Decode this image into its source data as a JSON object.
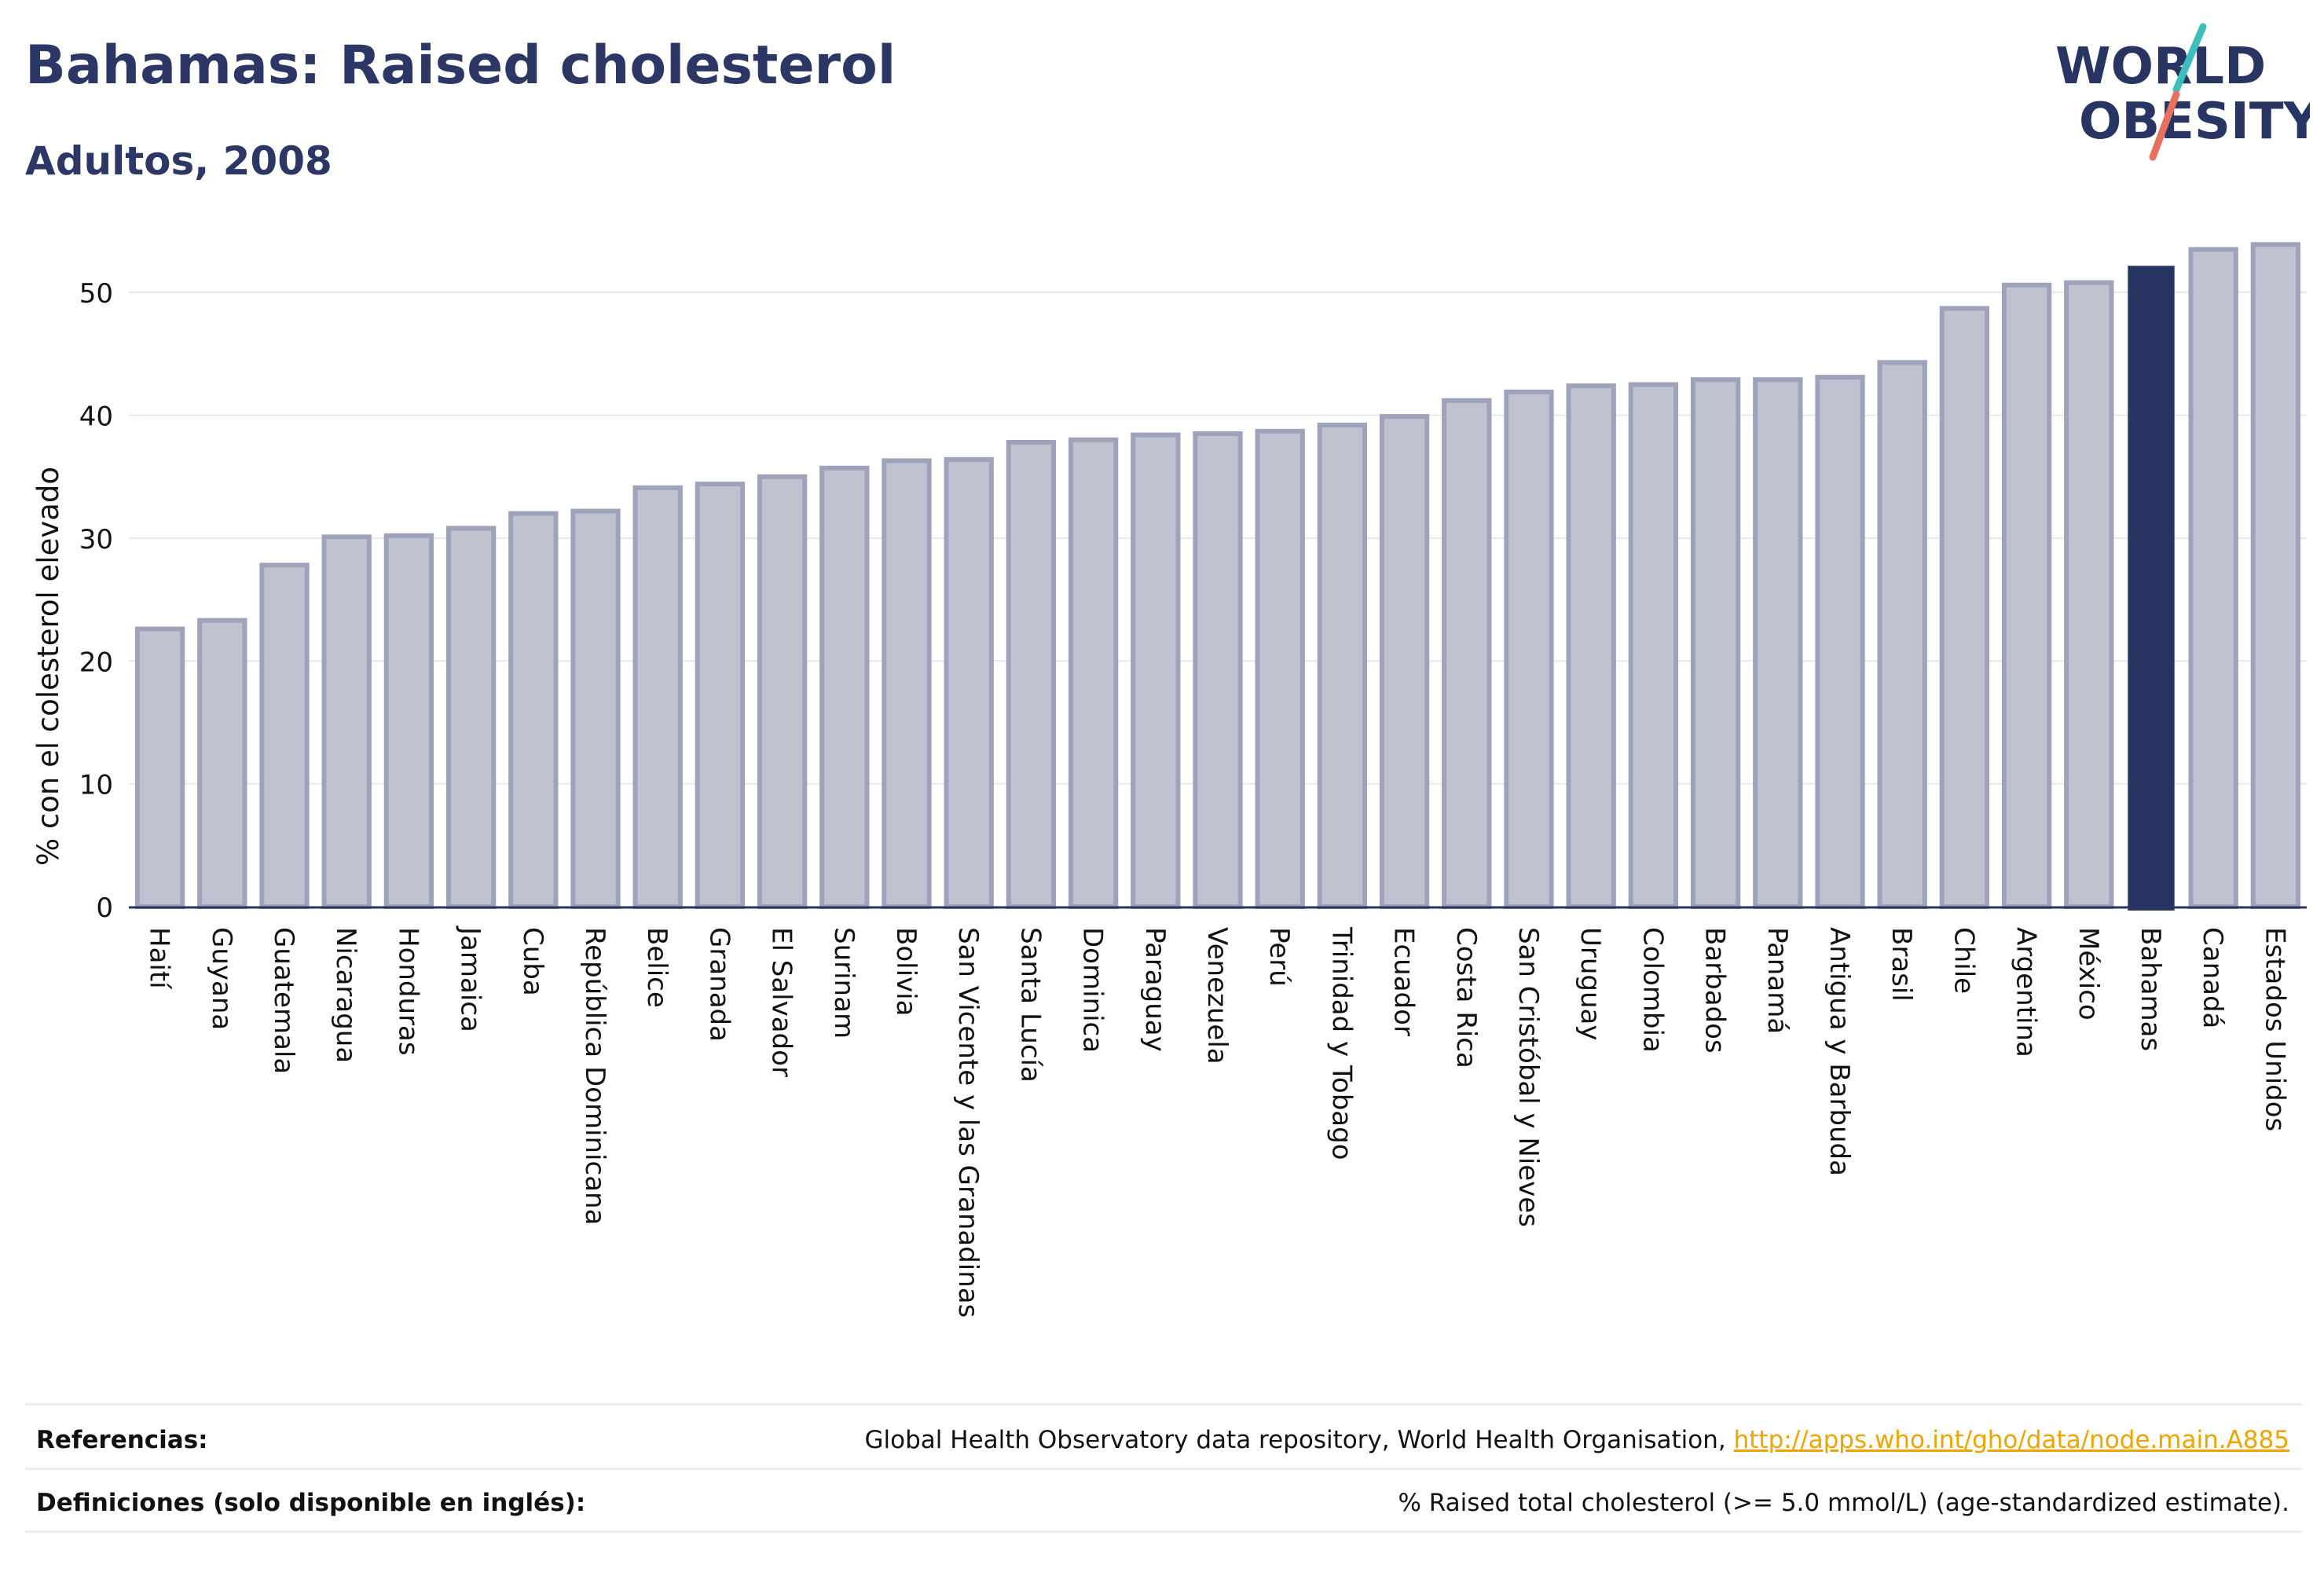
{
  "title": "Bahamas: Raised cholesterol",
  "subtitle": "Adultos, 2008",
  "logo": {
    "line1": "WORLD",
    "line2": "OBESITY"
  },
  "colors": {
    "navy": "#283462",
    "bar_fill": "#bfc3cf",
    "bar_edge": "#9ea3bb",
    "accent_teal": "#3bbfb8",
    "accent_red": "#e8705e",
    "link": "#f0a400"
  },
  "chart_data": {
    "type": "bar",
    "ylabel": "% con el colesterol elevado",
    "ylim": [
      0,
      55
    ],
    "yticks": [
      0,
      10,
      20,
      30,
      40,
      50
    ],
    "grid": true,
    "highlight": "Bahamas",
    "categories": [
      "Haití",
      "Guyana",
      "Guatemala",
      "Nicaragua",
      "Honduras",
      "Jamaica",
      "Cuba",
      "República Dominicana",
      "Belice",
      "Granada",
      "El Salvador",
      "Surinam",
      "Bolivia",
      "San Vicente y las Granadinas",
      "Santa Lucía",
      "Dominica",
      "Paraguay",
      "Venezuela",
      "Perú",
      "Trinidad y Tobago",
      "Ecuador",
      "Costa Rica",
      "San Cristóbal y Nieves",
      "Uruguay",
      "Colombia",
      "Barbados",
      "Panamá",
      "Antigua y Barbuda",
      "Brasil",
      "Chile",
      "Argentina",
      "México",
      "Bahamas",
      "Canadá",
      "Estados Unidos"
    ],
    "values": [
      22.6,
      23.3,
      27.8,
      30.1,
      30.2,
      30.8,
      32.0,
      32.2,
      34.1,
      34.4,
      35.0,
      35.7,
      36.3,
      36.4,
      37.8,
      38.0,
      38.4,
      38.5,
      38.7,
      39.2,
      39.9,
      41.2,
      41.9,
      42.4,
      42.5,
      42.9,
      42.9,
      43.1,
      44.3,
      48.7,
      50.6,
      50.8,
      52.1,
      53.5,
      53.9
    ]
  },
  "footer": {
    "references_label": "Referencias:",
    "references_text": "Global Health Observatory data repository, World Health Organisation, ",
    "references_link": "http://apps.who.int/gho/data/node.main.A885",
    "definitions_label": "Definiciones (solo disponible en inglés):",
    "definitions_text": "% Raised total cholesterol (>= 5.0 mmol/L) (age-standardized estimate)."
  }
}
